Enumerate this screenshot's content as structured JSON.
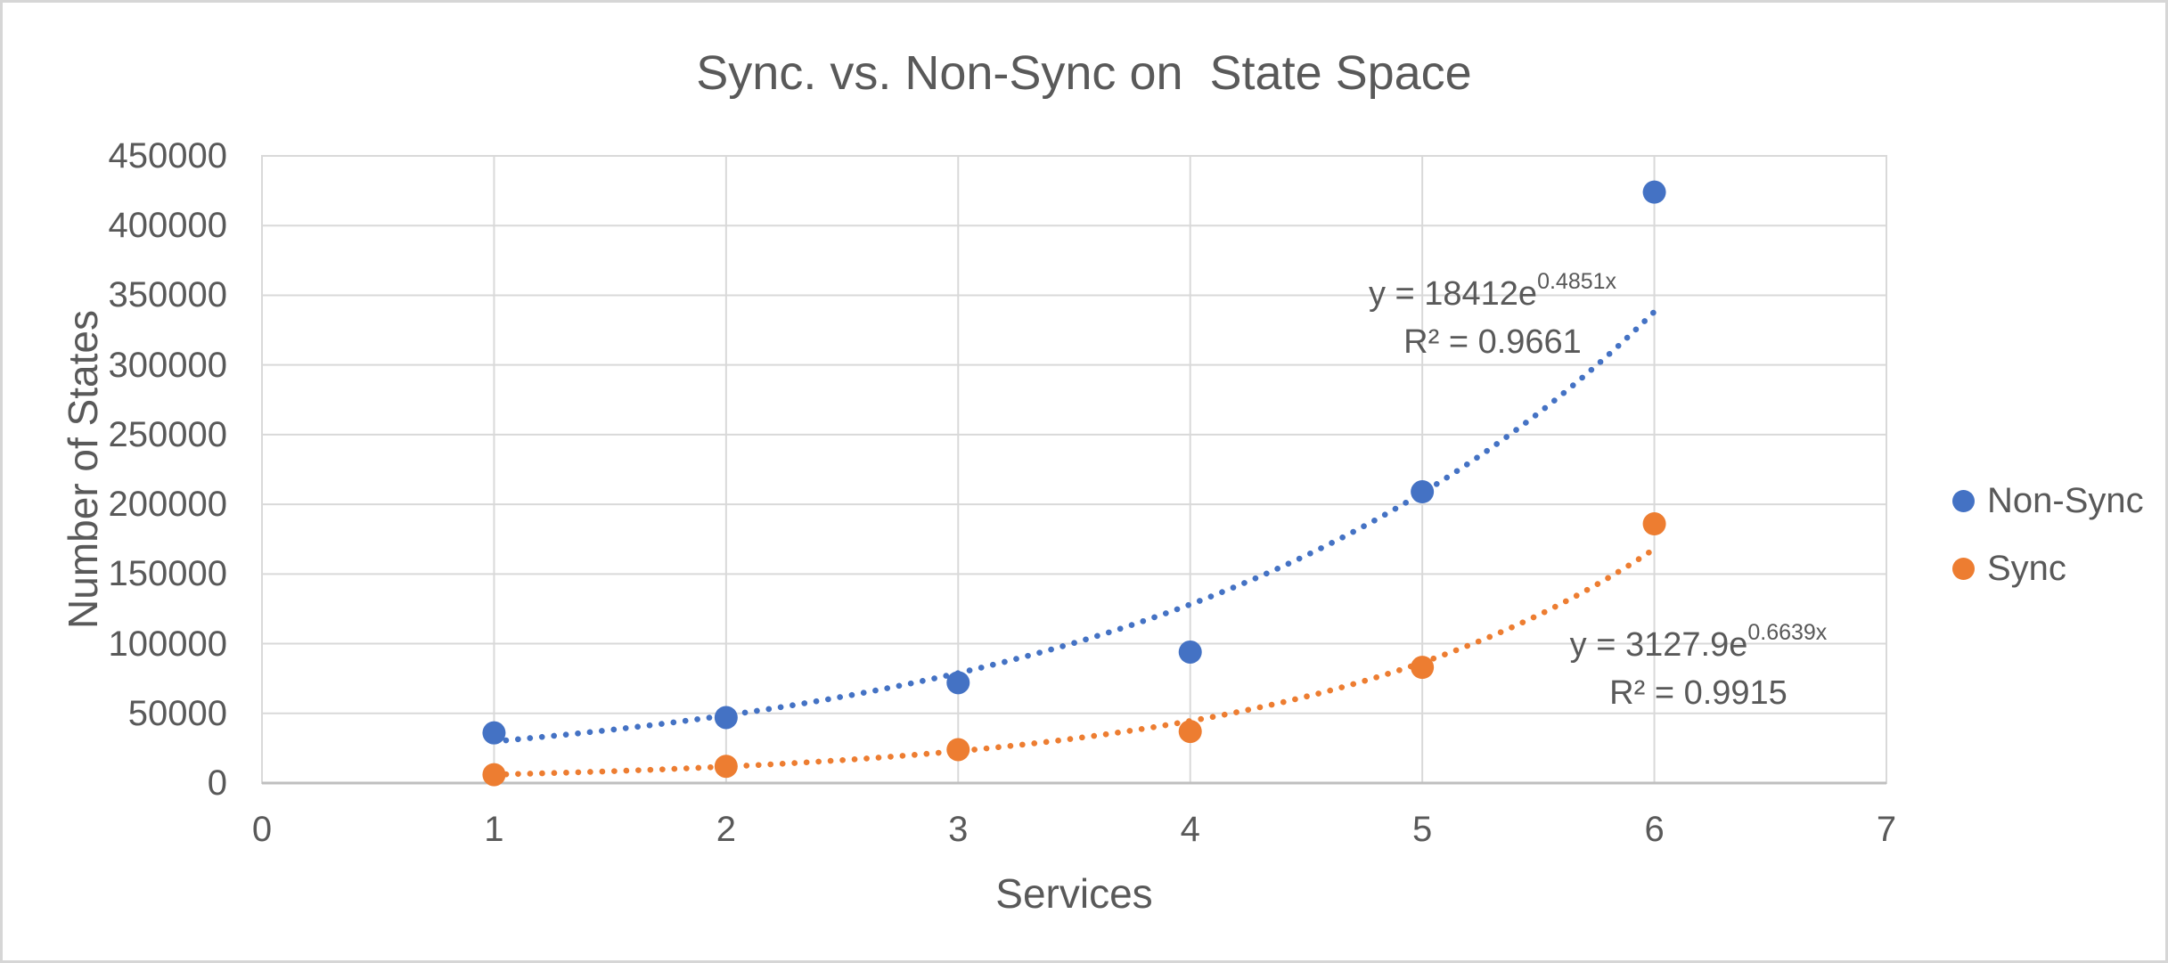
{
  "chart_data": {
    "type": "scatter",
    "title": "Sync. vs. Non-Sync on  State Space",
    "xlabel": "Services",
    "ylabel": "Number of States",
    "xlim": [
      0,
      7
    ],
    "ylim": [
      0,
      450000
    ],
    "x_ticks": [
      0,
      1,
      2,
      3,
      4,
      5,
      6,
      7
    ],
    "y_ticks": [
      0,
      50000,
      100000,
      150000,
      200000,
      250000,
      300000,
      350000,
      400000,
      450000
    ],
    "grid": true,
    "legend_position": "right",
    "x": [
      1,
      2,
      3,
      4,
      5,
      6
    ],
    "series": [
      {
        "name": "Non-Sync",
        "color": "#4472C4",
        "values": [
          36000,
          47000,
          72000,
          94000,
          209000,
          424000
        ],
        "trendline": {
          "kind": "exponential",
          "a": 18412,
          "b": 0.4851,
          "x_range": [
            1,
            6
          ],
          "equation_base": "y = 18412e",
          "equation_exponent": "0.4851x",
          "r_squared": "R² = 0.9661"
        }
      },
      {
        "name": "Sync",
        "color": "#ED7D31",
        "values": [
          6000,
          12000,
          24000,
          37000,
          83000,
          186000
        ],
        "trendline": {
          "kind": "exponential",
          "a": 3127.9,
          "b": 0.6639,
          "x_range": [
            1,
            6
          ],
          "equation_base": "y = 3127.9e",
          "equation_exponent": "0.6639x",
          "r_squared": "R² = 0.9915"
        }
      }
    ]
  },
  "legend": {
    "items": [
      {
        "label": "Non-Sync",
        "color": "#4472C4"
      },
      {
        "label": "Sync",
        "color": "#ED7D31"
      }
    ]
  },
  "style": {
    "gridline_color": "#D9D9D9",
    "axis_line_color": "#BFBFBF",
    "text_color": "#595959",
    "background": "#FFFFFF",
    "frame_border_color": "#D6D6D6"
  }
}
